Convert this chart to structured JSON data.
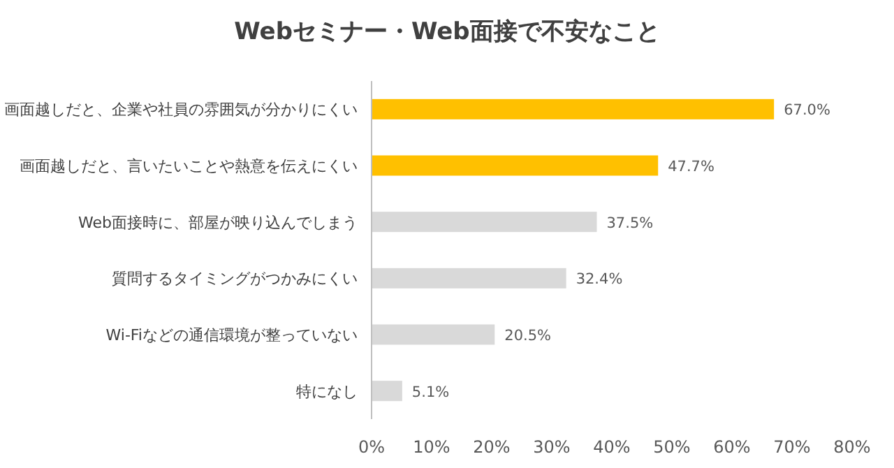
{
  "chart_data": {
    "type": "bar",
    "orientation": "horizontal",
    "title": "Webセミナー・Web面接で不安なこと",
    "categories": [
      "画面越しだと、企業や社員の雰囲気が分かりにくい",
      "画面越しだと、言いたいことや熱意を伝えにくい",
      "Web面接時に、部屋が映り込んでしまう",
      "質問するタイミングがつかみにくい",
      "Wi-Fiなどの通信環境が整っていない",
      "特になし"
    ],
    "values": [
      67.0,
      47.7,
      37.5,
      32.4,
      20.5,
      5.1
    ],
    "colors": [
      "#ffc000",
      "#ffc000",
      "#d9d9d9",
      "#d9d9d9",
      "#d9d9d9",
      "#d9d9d9"
    ],
    "value_labels": [
      "67.0%",
      "47.7%",
      "37.5%",
      "32.4%",
      "20.5%",
      "5.1%"
    ],
    "xlim": [
      0,
      80
    ],
    "xticks": [
      {
        "value": 0,
        "label": "0%"
      },
      {
        "value": 10,
        "label": "10%"
      },
      {
        "value": 20,
        "label": "20%"
      },
      {
        "value": 30,
        "label": "30%"
      },
      {
        "value": 40,
        "label": "40%"
      },
      {
        "value": 50,
        "label": "50%"
      },
      {
        "value": 60,
        "label": "60%"
      },
      {
        "value": 70,
        "label": "70%"
      },
      {
        "value": 80,
        "label": "80%"
      }
    ],
    "grid": false
  }
}
